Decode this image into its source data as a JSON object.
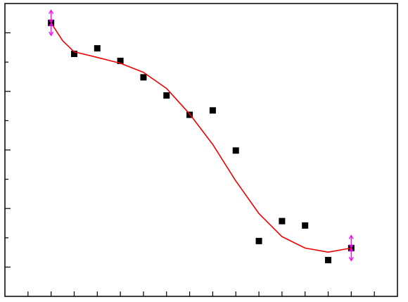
{
  "chart_data": {
    "type": "scatter",
    "xlim": [
      -1,
      16
    ],
    "ylim": [
      -1,
      9
    ],
    "xticks": [
      0,
      1,
      2,
      3,
      4,
      5,
      6,
      7,
      8,
      9,
      10,
      11,
      12,
      13,
      14,
      15
    ],
    "yticks": [
      0,
      1,
      2,
      3,
      4,
      5,
      6,
      7,
      8
    ],
    "series": [
      {
        "color": "#000000",
        "x": [
          1,
          2,
          3,
          4,
          5,
          6,
          7,
          8,
          9,
          10,
          11,
          12,
          13,
          14
        ],
        "values": [
          8.34,
          7.28,
          7.47,
          7.04,
          6.48,
          5.86,
          5.2,
          5.35,
          3.98,
          0.89,
          1.57,
          1.42,
          0.24,
          0.65
        ]
      },
      {
        "color": "#ee0000",
        "kind": "line",
        "x": [
          1,
          1.5,
          2,
          3,
          4,
          5,
          6,
          7,
          8,
          9,
          10,
          11,
          12,
          13,
          14
        ],
        "values": [
          8.34,
          7.73,
          7.35,
          7.16,
          6.96,
          6.65,
          6.1,
          5.23,
          4.19,
          2.94,
          1.83,
          1.04,
          0.65,
          0.51,
          0.65
        ]
      }
    ],
    "error_bars": [
      {
        "x": 1,
        "y": 8.34,
        "error": 0.43,
        "color": "#ff00ff"
      },
      {
        "x": 14,
        "y": 0.65,
        "error": 0.43,
        "color": "#ff00ff"
      }
    ]
  }
}
